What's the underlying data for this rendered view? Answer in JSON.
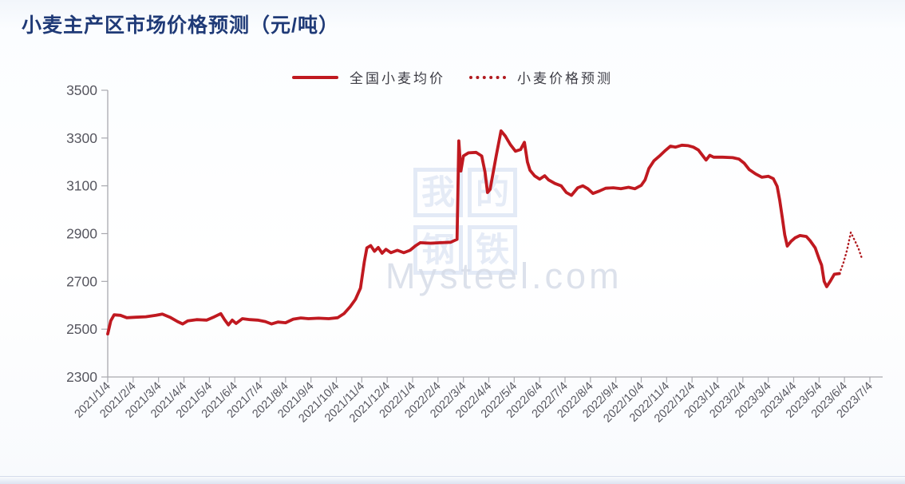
{
  "page": {
    "title": "小麦主产区市场价格预测（元/吨）",
    "title_color": "#1f3a77"
  },
  "legend": [
    {
      "label": "全国小麦均价",
      "style": "solid",
      "color": "#c01920"
    },
    {
      "label": "小麦价格预测",
      "style": "dotted",
      "color": "#b01a1f"
    }
  ],
  "watermark": {
    "chars": [
      "我",
      "的",
      "钢",
      "铁"
    ],
    "site": "Mysteel.com"
  },
  "axis": {
    "line_color": "#a9a9af",
    "label_color": "#56565f"
  },
  "chart_data": {
    "type": "line",
    "title": "小麦主产区市场价格预测（元/吨）",
    "ylabel": "元/吨",
    "ylim": [
      2300,
      3500
    ],
    "yticks": [
      2300,
      2500,
      2700,
      2900,
      3100,
      3300,
      3500
    ],
    "grid": false,
    "legend_position": "top-center",
    "x_categories": [
      "2021/1/4",
      "2021/2/4",
      "2021/3/4",
      "2021/4/4",
      "2021/5/4",
      "2021/6/4",
      "2021/7/4",
      "2021/8/4",
      "2021/9/4",
      "2021/10/4",
      "2021/11/4",
      "2021/12/4",
      "2022/1/4",
      "2022/2/4",
      "2022/3/4",
      "2022/4/4",
      "2022/5/4",
      "2022/6/4",
      "2022/7/4",
      "2022/8/4",
      "2022/9/4",
      "2022/10/4",
      "2022/11/4",
      "2022/12/4",
      "2023/1/4",
      "2023/2/4",
      "2023/3/4",
      "2023/4/4",
      "2023/5/4",
      "2023/6/4",
      "2023/7/4"
    ],
    "x_unit": "months since 2021/1/4 (fractional index into x_categories)",
    "series": [
      {
        "name": "全国小麦均价",
        "style": "solid",
        "color": "#c01920",
        "points": [
          [
            0,
            2480
          ],
          [
            0.12,
            2535
          ],
          [
            0.25,
            2560
          ],
          [
            0.5,
            2558
          ],
          [
            0.75,
            2548
          ],
          [
            1.1,
            2550
          ],
          [
            1.5,
            2552
          ],
          [
            1.9,
            2558
          ],
          [
            2.15,
            2563
          ],
          [
            2.45,
            2550
          ],
          [
            2.75,
            2532
          ],
          [
            2.95,
            2522
          ],
          [
            3.15,
            2535
          ],
          [
            3.5,
            2540
          ],
          [
            3.9,
            2538
          ],
          [
            4.2,
            2552
          ],
          [
            4.45,
            2565
          ],
          [
            4.6,
            2540
          ],
          [
            4.75,
            2518
          ],
          [
            4.9,
            2538
          ],
          [
            5.05,
            2524
          ],
          [
            5.3,
            2544
          ],
          [
            5.6,
            2540
          ],
          [
            5.9,
            2538
          ],
          [
            6.2,
            2532
          ],
          [
            6.45,
            2522
          ],
          [
            6.7,
            2530
          ],
          [
            7,
            2527
          ],
          [
            7.3,
            2542
          ],
          [
            7.6,
            2547
          ],
          [
            7.9,
            2544
          ],
          [
            8.3,
            2546
          ],
          [
            8.7,
            2544
          ],
          [
            9.05,
            2548
          ],
          [
            9.3,
            2565
          ],
          [
            9.55,
            2595
          ],
          [
            9.75,
            2625
          ],
          [
            9.95,
            2672
          ],
          [
            10.1,
            2782
          ],
          [
            10.2,
            2840
          ],
          [
            10.35,
            2850
          ],
          [
            10.5,
            2826
          ],
          [
            10.65,
            2842
          ],
          [
            10.8,
            2818
          ],
          [
            10.95,
            2834
          ],
          [
            11.15,
            2820
          ],
          [
            11.4,
            2830
          ],
          [
            11.65,
            2820
          ],
          [
            11.9,
            2830
          ],
          [
            12.1,
            2848
          ],
          [
            12.3,
            2862
          ],
          [
            12.7,
            2860
          ],
          [
            13.1,
            2862
          ],
          [
            13.5,
            2864
          ],
          [
            13.75,
            2876
          ],
          [
            13.82,
            3288
          ],
          [
            13.9,
            3162
          ],
          [
            14,
            3225
          ],
          [
            14.2,
            3238
          ],
          [
            14.5,
            3240
          ],
          [
            14.72,
            3225
          ],
          [
            14.85,
            3158
          ],
          [
            14.95,
            3072
          ],
          [
            15.05,
            3085
          ],
          [
            15.3,
            3230
          ],
          [
            15.48,
            3330
          ],
          [
            15.65,
            3308
          ],
          [
            15.85,
            3272
          ],
          [
            16.05,
            3245
          ],
          [
            16.25,
            3252
          ],
          [
            16.4,
            3282
          ],
          [
            16.52,
            3200
          ],
          [
            16.62,
            3165
          ],
          [
            16.8,
            3142
          ],
          [
            17,
            3128
          ],
          [
            17.2,
            3142
          ],
          [
            17.35,
            3125
          ],
          [
            17.6,
            3110
          ],
          [
            17.85,
            3100
          ],
          [
            18.05,
            3072
          ],
          [
            18.25,
            3060
          ],
          [
            18.5,
            3092
          ],
          [
            18.7,
            3100
          ],
          [
            18.9,
            3088
          ],
          [
            19.1,
            3068
          ],
          [
            19.35,
            3078
          ],
          [
            19.6,
            3090
          ],
          [
            19.9,
            3092
          ],
          [
            20.2,
            3088
          ],
          [
            20.5,
            3094
          ],
          [
            20.75,
            3088
          ],
          [
            21,
            3102
          ],
          [
            21.15,
            3125
          ],
          [
            21.3,
            3172
          ],
          [
            21.5,
            3205
          ],
          [
            21.75,
            3228
          ],
          [
            21.95,
            3248
          ],
          [
            22.15,
            3266
          ],
          [
            22.35,
            3262
          ],
          [
            22.6,
            3270
          ],
          [
            22.85,
            3268
          ],
          [
            23.05,
            3262
          ],
          [
            23.25,
            3250
          ],
          [
            23.45,
            3222
          ],
          [
            23.55,
            3208
          ],
          [
            23.7,
            3228
          ],
          [
            23.85,
            3220
          ],
          [
            24.2,
            3220
          ],
          [
            24.6,
            3218
          ],
          [
            24.85,
            3212
          ],
          [
            25.05,
            3195
          ],
          [
            25.25,
            3168
          ],
          [
            25.5,
            3150
          ],
          [
            25.75,
            3136
          ],
          [
            26,
            3140
          ],
          [
            26.2,
            3130
          ],
          [
            26.35,
            3098
          ],
          [
            26.45,
            3040
          ],
          [
            26.55,
            2968
          ],
          [
            26.65,
            2895
          ],
          [
            26.75,
            2848
          ],
          [
            26.9,
            2868
          ],
          [
            27.05,
            2882
          ],
          [
            27.25,
            2892
          ],
          [
            27.5,
            2888
          ],
          [
            27.65,
            2870
          ],
          [
            27.85,
            2840
          ],
          [
            28,
            2795
          ],
          [
            28.1,
            2768
          ],
          [
            28.2,
            2700
          ],
          [
            28.3,
            2678
          ],
          [
            28.45,
            2702
          ],
          [
            28.6,
            2730
          ],
          [
            28.8,
            2733
          ]
        ]
      },
      {
        "name": "小麦价格预测",
        "style": "dotted",
        "color": "#b01a1f",
        "points": [
          [
            28.8,
            2733
          ],
          [
            28.95,
            2775
          ],
          [
            29.1,
            2830
          ],
          [
            29.25,
            2905
          ],
          [
            29.4,
            2872
          ],
          [
            29.55,
            2838
          ],
          [
            29.7,
            2792
          ]
        ]
      }
    ]
  }
}
